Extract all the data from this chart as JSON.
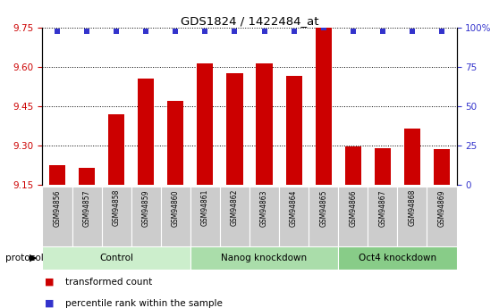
{
  "title": "GDS1824 / 1422484_at",
  "samples": [
    "GSM94856",
    "GSM94857",
    "GSM94858",
    "GSM94859",
    "GSM94860",
    "GSM94861",
    "GSM94862",
    "GSM94863",
    "GSM94864",
    "GSM94865",
    "GSM94866",
    "GSM94867",
    "GSM94868",
    "GSM94869"
  ],
  "bar_values": [
    9.225,
    9.215,
    9.42,
    9.555,
    9.47,
    9.615,
    9.575,
    9.615,
    9.565,
    9.76,
    9.295,
    9.29,
    9.365,
    9.285
  ],
  "percentile_values": [
    98,
    98,
    98,
    98,
    98,
    98,
    98,
    98,
    98,
    100,
    98,
    98,
    98,
    98
  ],
  "bar_color": "#cc0000",
  "dot_color": "#3333cc",
  "ylim_left": [
    9.15,
    9.75
  ],
  "ylim_right": [
    0,
    100
  ],
  "yticks_left": [
    9.15,
    9.3,
    9.45,
    9.6,
    9.75
  ],
  "yticks_right": [
    0,
    25,
    50,
    75,
    100
  ],
  "ytick_labels_right": [
    "0",
    "25",
    "50",
    "75",
    "100%"
  ],
  "groups": [
    {
      "label": "Control",
      "start": 0,
      "end": 4,
      "color": "#cceecc"
    },
    {
      "label": "Nanog knockdown",
      "start": 5,
      "end": 9,
      "color": "#aaddaa"
    },
    {
      "label": "Oct4 knockdown",
      "start": 10,
      "end": 13,
      "color": "#88cc88"
    }
  ],
  "protocol_label": "protocol",
  "legend_bar_label": "transformed count",
  "legend_dot_label": "percentile rank within the sample",
  "bar_width": 0.55,
  "fig_width": 5.58,
  "fig_height": 3.45,
  "dpi": 100
}
